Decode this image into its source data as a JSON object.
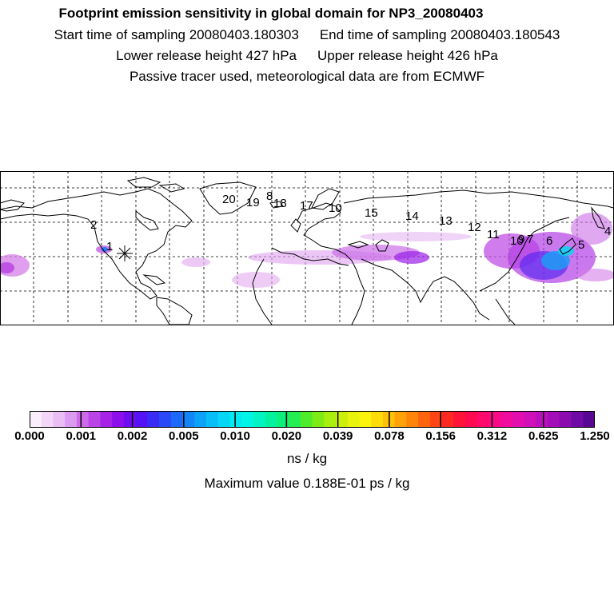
{
  "header": {
    "title": "Footprint emission sensitivity in global domain for NP3_20080403",
    "start_label": "Start time of sampling 20080403.180303",
    "end_label": "End time of sampling 20080403.180543",
    "lower_label": "Lower release height  427 hPa",
    "upper_label": "Upper release height  426 hPa",
    "note": "Passive tracer used, meteorological data are from ECMWF"
  },
  "map": {
    "track_labels": [
      "20",
      "19",
      "8",
      "18",
      "17",
      "10",
      "15",
      "14",
      "13",
      "12",
      "2",
      "1",
      "11",
      "10",
      "9",
      "7",
      "6",
      "5",
      "4"
    ],
    "release_marker": "release-star-icon",
    "colors": {
      "coast": "#000000",
      "grid": "#000000"
    }
  },
  "colorbar": {
    "colors": [
      "#fbeefc",
      "#f4d6f8",
      "#eabdf5",
      "#dc9bf0",
      "#cc6ae8",
      "#bb44e6",
      "#a522e6",
      "#8d10ec",
      "#6f0cf2",
      "#5512f4",
      "#3a2cf4",
      "#2a48f6",
      "#1c68f8",
      "#1286f8",
      "#0ca2f8",
      "#08bef8",
      "#06d6f6",
      "#04eaf2",
      "#02f4e4",
      "#02f4c4",
      "#04f29e",
      "#0cf07a",
      "#24ee52",
      "#4eec2a",
      "#7eec14",
      "#a8ee0e",
      "#ccf00c",
      "#e8f40c",
      "#fcf40c",
      "#fedc0a",
      "#fec008",
      "#fea208",
      "#fe840a",
      "#fe640e",
      "#fe4614",
      "#fe2a22",
      "#fe1436",
      "#fe0a50",
      "#fe0a6c",
      "#fa0a86",
      "#f00c9c",
      "#e20eae",
      "#d010b8",
      "#bc10bc",
      "#a40eb8",
      "#8a0cb0",
      "#700aa4",
      "#560894"
    ],
    "ticks": [
      "0.000",
      "0.001",
      "0.002",
      "0.005",
      "0.010",
      "0.020",
      "0.039",
      "0.078",
      "0.156",
      "0.312",
      "0.625",
      "1.250"
    ],
    "unit": "ns / kg",
    "max_text": "Maximum value  0.188E-01 ps / kg"
  }
}
